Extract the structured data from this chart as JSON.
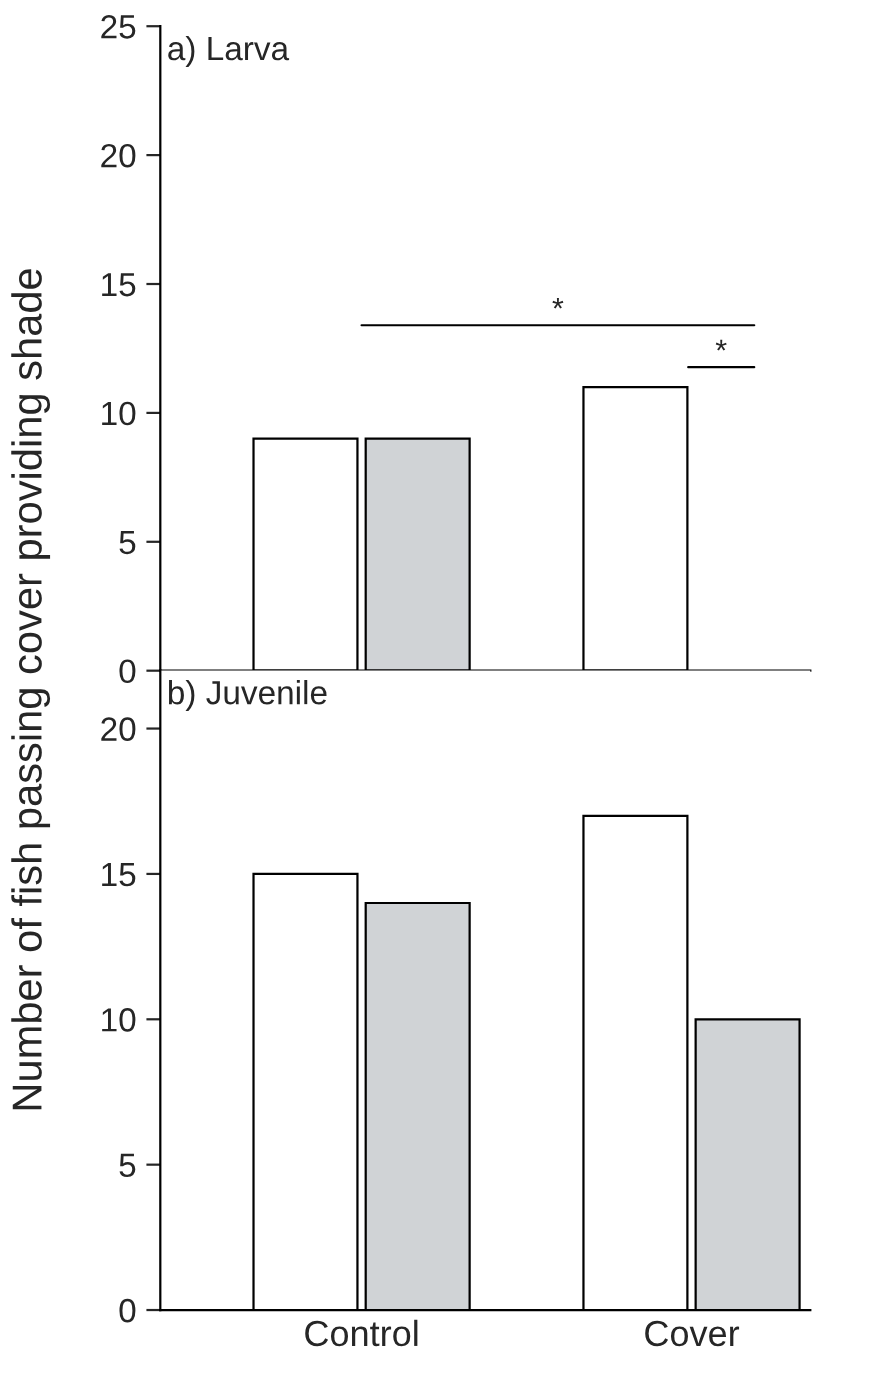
{
  "chart_data": [
    {
      "type": "bar",
      "categories": [
        null,
        null
      ],
      "ylabel": "Number of fish passing cover providing shade",
      "annotations": [
        "a) Larva",
        "*",
        "*"
      ],
      "series": [
        {
          "color": "#ffffff",
          "values": [
            9,
            11
          ]
        },
        {
          "color": "#d0d3d6",
          "values": [
            9,
            null
          ]
        }
      ],
      "ylim": [
        0,
        25
      ],
      "yticks": [
        0,
        5,
        10,
        15,
        20,
        25
      ],
      "tick_labels": "y",
      "grid": false,
      "legend": false
    },
    {
      "type": "bar",
      "categories": [
        "Control",
        "Cover"
      ],
      "annotations": [
        "b) Juvenile"
      ],
      "series": [
        {
          "color": "#ffffff",
          "values": [
            15,
            17
          ]
        },
        {
          "color": "#d0d3d6",
          "values": [
            14,
            10
          ]
        }
      ],
      "ylim": [
        0,
        22
      ],
      "yticks": [
        0,
        5,
        10,
        15,
        20
      ],
      "grid": false,
      "legend": false
    }
  ]
}
